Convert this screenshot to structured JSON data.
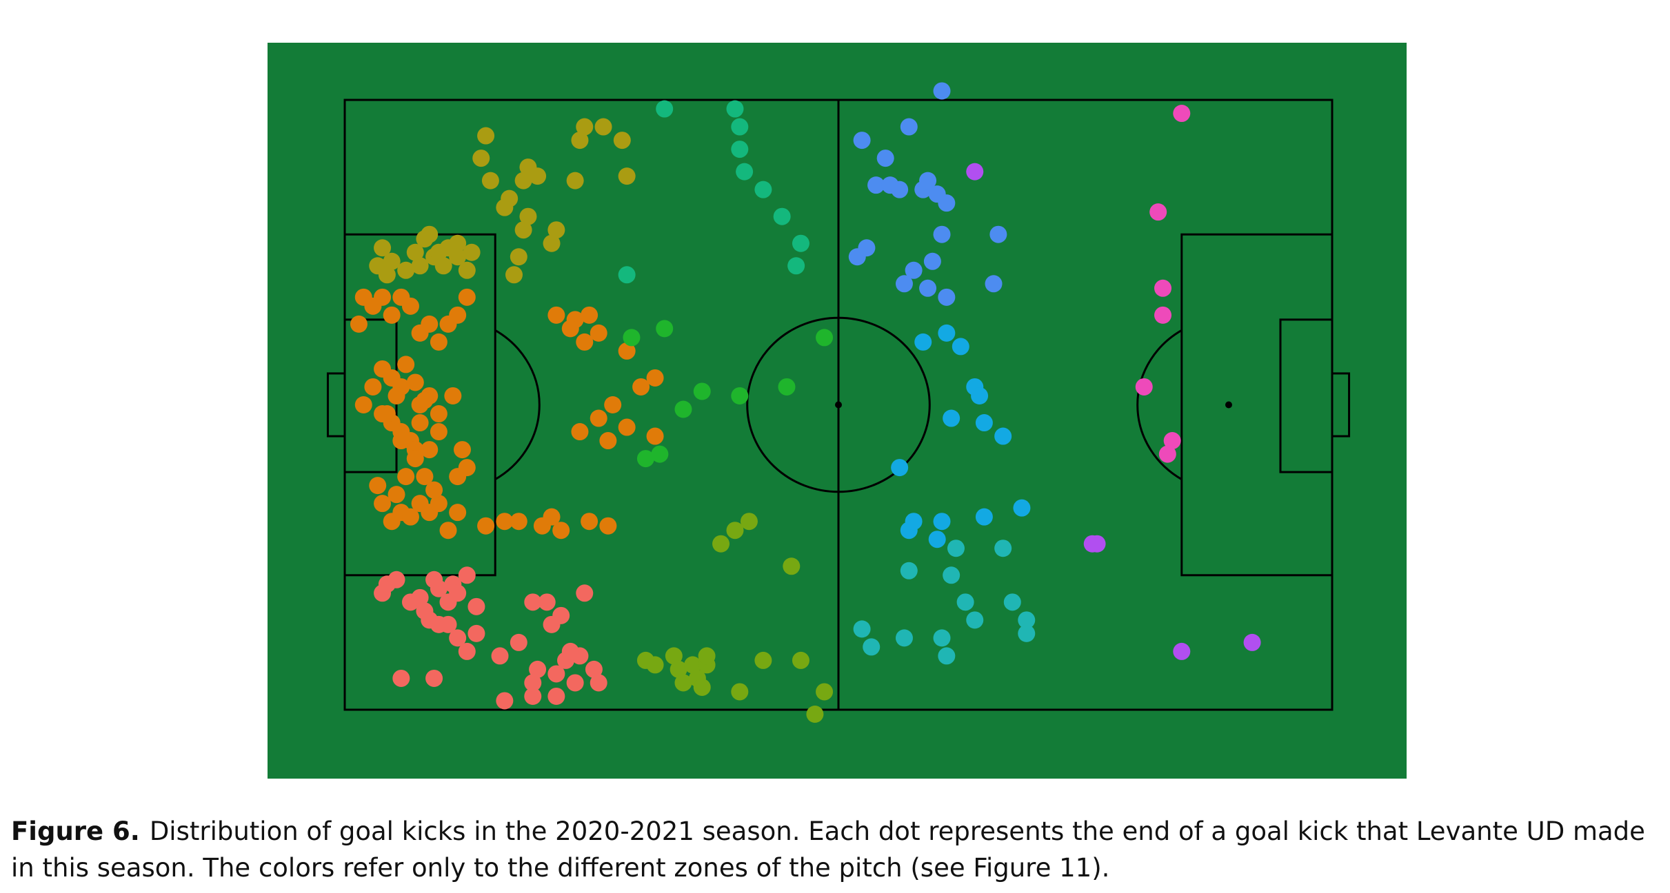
{
  "caption": {
    "label": "Figure 6.",
    "text": "Distribution of goal kicks in the 2020-2021 season. Each dot represents the end of a goal kick that Levante UD made in this season. The colors refer only to the different zones of the pitch (see Figure 11)."
  },
  "chart_data": {
    "type": "scatter",
    "title": "",
    "xlabel": "",
    "ylabel": "",
    "xlim": [
      0,
      105
    ],
    "ylim": [
      0,
      68
    ],
    "grid": false,
    "legend": "none",
    "colors": {
      "background": "#137c37",
      "lines": "#000000"
    },
    "series": [
      {
        "color": "#aa9c12",
        "points": [
          [
            15,
            64
          ],
          [
            14.5,
            61.5
          ],
          [
            15.5,
            59
          ],
          [
            17,
            56
          ],
          [
            19.5,
            60.5
          ],
          [
            19,
            59
          ],
          [
            20.5,
            59.5
          ],
          [
            24.5,
            59
          ],
          [
            25,
            63.5
          ],
          [
            25.5,
            65
          ],
          [
            27.5,
            65
          ],
          [
            29.5,
            63.5
          ],
          [
            30,
            59.5
          ],
          [
            19,
            53.5
          ],
          [
            19.5,
            55
          ],
          [
            17.5,
            57
          ],
          [
            22.5,
            53.5
          ],
          [
            22,
            52
          ],
          [
            18.5,
            50.5
          ],
          [
            18,
            48.5
          ],
          [
            13,
            49
          ],
          [
            13.5,
            51
          ],
          [
            12,
            52
          ],
          [
            11,
            51.5
          ],
          [
            9,
            53
          ],
          [
            9.5,
            50.5
          ],
          [
            3.5,
            49.5
          ],
          [
            4.5,
            48.5
          ],
          [
            6.5,
            49
          ],
          [
            7.5,
            51
          ],
          [
            8.5,
            52.5
          ],
          [
            10,
            51
          ],
          [
            10.5,
            49.5
          ],
          [
            12,
            50.5
          ],
          [
            8,
            49.5
          ],
          [
            5,
            50
          ],
          [
            4,
            51.5
          ]
        ]
      },
      {
        "color": "#e07b09",
        "points": [
          [
            1.5,
            43
          ],
          [
            2,
            46
          ],
          [
            3,
            45
          ],
          [
            4,
            46
          ],
          [
            5,
            44
          ],
          [
            6,
            46
          ],
          [
            7,
            45
          ],
          [
            8,
            42
          ],
          [
            9,
            43
          ],
          [
            10,
            41
          ],
          [
            11,
            43
          ],
          [
            12,
            44
          ],
          [
            13,
            46
          ],
          [
            4,
            38
          ],
          [
            5,
            37
          ],
          [
            6,
            36
          ],
          [
            6.5,
            38.5
          ],
          [
            7.5,
            36.5
          ],
          [
            8,
            34
          ],
          [
            9,
            35
          ],
          [
            4,
            33
          ],
          [
            5,
            32
          ],
          [
            6,
            31
          ],
          [
            7,
            30
          ],
          [
            8,
            32
          ],
          [
            9,
            29
          ],
          [
            10,
            31
          ],
          [
            7.5,
            29
          ],
          [
            12.5,
            29
          ],
          [
            12,
            26
          ],
          [
            3.5,
            25
          ],
          [
            4,
            23
          ],
          [
            5,
            21
          ],
          [
            6,
            22
          ],
          [
            7,
            21.5
          ],
          [
            8,
            23
          ],
          [
            9,
            22
          ],
          [
            10,
            23
          ],
          [
            11,
            20
          ],
          [
            12,
            22
          ],
          [
            15,
            20.5
          ],
          [
            17,
            21
          ],
          [
            18.5,
            21
          ],
          [
            21,
            20.5
          ],
          [
            22,
            21.5
          ],
          [
            23,
            20
          ],
          [
            26,
            21
          ],
          [
            28,
            20.5
          ],
          [
            25.5,
            41
          ],
          [
            27,
            42
          ],
          [
            24.5,
            43.5
          ],
          [
            22.5,
            44
          ],
          [
            24,
            42.5
          ],
          [
            26,
            44
          ],
          [
            30,
            40
          ],
          [
            31.5,
            36
          ],
          [
            33,
            37
          ],
          [
            25,
            31
          ],
          [
            27,
            32.5
          ],
          [
            28,
            30
          ],
          [
            28.5,
            34
          ],
          [
            30,
            31.5
          ],
          [
            33,
            30.5
          ],
          [
            2,
            34
          ],
          [
            3,
            36
          ],
          [
            4.5,
            33
          ],
          [
            5.5,
            35
          ],
          [
            6,
            30
          ],
          [
            7.5,
            28
          ],
          [
            8.5,
            34.5
          ],
          [
            10,
            33
          ],
          [
            11.5,
            35
          ],
          [
            6.5,
            26
          ],
          [
            5.5,
            24
          ],
          [
            8.5,
            26
          ],
          [
            9.5,
            24.5
          ],
          [
            13,
            27
          ]
        ]
      },
      {
        "color": "#f3685f",
        "points": [
          [
            4,
            13
          ],
          [
            4.5,
            14
          ],
          [
            5.5,
            14.5
          ],
          [
            7,
            12
          ],
          [
            8,
            12.5
          ],
          [
            8.5,
            11
          ],
          [
            9,
            10
          ],
          [
            10,
            9.5
          ],
          [
            10,
            13.5
          ],
          [
            11,
            12
          ],
          [
            11.5,
            14
          ],
          [
            12,
            13
          ],
          [
            13,
            15
          ],
          [
            14,
            11.5
          ],
          [
            9.5,
            14.5
          ],
          [
            11,
            9.5
          ],
          [
            12,
            8
          ],
          [
            14,
            8.5
          ],
          [
            13,
            6.5
          ],
          [
            16.5,
            6
          ],
          [
            18.5,
            7.5
          ],
          [
            20,
            12
          ],
          [
            21.5,
            12
          ],
          [
            22,
            9.5
          ],
          [
            23,
            10.5
          ],
          [
            25.5,
            13
          ],
          [
            6,
            3.5
          ],
          [
            9.5,
            3.5
          ],
          [
            17,
            1
          ],
          [
            20,
            1.5
          ],
          [
            20,
            3
          ],
          [
            22.5,
            1.5
          ],
          [
            22.5,
            4
          ],
          [
            23.5,
            5.5
          ],
          [
            24.5,
            3
          ],
          [
            25,
            6
          ],
          [
            27,
            3
          ],
          [
            26.5,
            4.5
          ],
          [
            24,
            6.5
          ],
          [
            20.5,
            4.5
          ]
        ]
      },
      {
        "color": "#14b87d",
        "points": [
          [
            34,
            67
          ],
          [
            41.5,
            67
          ],
          [
            42,
            65
          ],
          [
            42,
            62.5
          ],
          [
            42.5,
            60
          ],
          [
            44.5,
            58
          ],
          [
            46.5,
            55
          ],
          [
            48.5,
            52
          ],
          [
            48,
            49.5
          ],
          [
            30,
            48.5
          ]
        ]
      },
      {
        "color": "#1fb52c",
        "points": [
          [
            30.5,
            41.5
          ],
          [
            34,
            42.5
          ],
          [
            51,
            41.5
          ],
          [
            47,
            36
          ],
          [
            42,
            35
          ],
          [
            38,
            35.5
          ],
          [
            36,
            33.5
          ],
          [
            33.5,
            28.5
          ],
          [
            32,
            28
          ]
        ]
      },
      {
        "color": "#77a812",
        "points": [
          [
            41.5,
            20
          ],
          [
            43,
            21
          ],
          [
            40,
            18.5
          ],
          [
            47.5,
            16
          ],
          [
            32,
            5.5
          ],
          [
            33,
            5
          ],
          [
            35,
            6
          ],
          [
            35.5,
            4.5
          ],
          [
            36,
            3
          ],
          [
            37,
            5
          ],
          [
            37.5,
            3.5
          ],
          [
            38,
            2.5
          ],
          [
            38.5,
            5
          ],
          [
            38.5,
            6
          ],
          [
            42,
            2
          ],
          [
            44.5,
            5.5
          ],
          [
            48.5,
            5.5
          ],
          [
            51,
            2
          ],
          [
            50,
            -0.5
          ]
        ]
      },
      {
        "color": "#4d8cf0",
        "points": [
          [
            55,
            63.5
          ],
          [
            60,
            65
          ],
          [
            63.5,
            69
          ],
          [
            56.5,
            58.5
          ],
          [
            57.5,
            61.5
          ],
          [
            58,
            58.5
          ],
          [
            59,
            58
          ],
          [
            61.5,
            58
          ],
          [
            62,
            59
          ],
          [
            63,
            57.5
          ],
          [
            64,
            56.5
          ],
          [
            63.5,
            53
          ],
          [
            54.5,
            50.5
          ],
          [
            55.5,
            51.5
          ],
          [
            59.5,
            47.5
          ],
          [
            60.5,
            49
          ],
          [
            62,
            47
          ],
          [
            62.5,
            50
          ],
          [
            64,
            46
          ],
          [
            69,
            47.5
          ],
          [
            69.5,
            53
          ]
        ]
      },
      {
        "color": "#13a9e3",
        "points": [
          [
            61.5,
            41
          ],
          [
            64,
            42
          ],
          [
            65.5,
            40.5
          ],
          [
            67,
            36
          ],
          [
            67.5,
            35
          ],
          [
            68,
            32
          ],
          [
            70,
            30.5
          ],
          [
            64.5,
            32.5
          ],
          [
            59,
            27
          ],
          [
            68,
            21.5
          ],
          [
            72,
            22.5
          ],
          [
            63,
            19
          ],
          [
            63.5,
            21
          ],
          [
            60,
            20
          ],
          [
            60.5,
            21
          ]
        ]
      },
      {
        "color": "#20b6b4",
        "points": [
          [
            65,
            18
          ],
          [
            60,
            15.5
          ],
          [
            64.5,
            15
          ],
          [
            66,
            12
          ],
          [
            67,
            10
          ],
          [
            70,
            18
          ],
          [
            71,
            12
          ],
          [
            72.5,
            10
          ],
          [
            72.5,
            8.5
          ],
          [
            55,
            9
          ],
          [
            56,
            7
          ],
          [
            59.5,
            8
          ],
          [
            63.5,
            8
          ],
          [
            64,
            6
          ]
        ]
      },
      {
        "color": "#b14ff0",
        "points": [
          [
            67,
            60
          ],
          [
            79.5,
            18.5
          ],
          [
            80,
            18.5
          ],
          [
            89,
            6.5
          ],
          [
            96.5,
            7.5
          ]
        ]
      },
      {
        "color": "#ee4aba",
        "points": [
          [
            89,
            66.5
          ],
          [
            86.5,
            55.5
          ],
          [
            87,
            47
          ],
          [
            87,
            44
          ],
          [
            85,
            36
          ],
          [
            87.5,
            28.5
          ],
          [
            88,
            30
          ]
        ]
      }
    ]
  }
}
